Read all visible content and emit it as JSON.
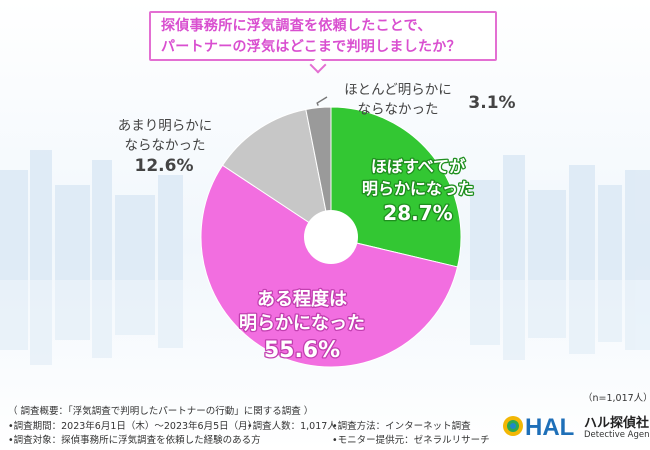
{
  "question": {
    "line1": "探偵事務所に浮気調査を依頼したことで、",
    "line2": "パートナーの浮気はどこまで判明しましたか？"
  },
  "chart_data": {
    "type": "pie",
    "title": "探偵事務所に浮気調査を依頼したことで、パートナーの浮気はどこまで判明しましたか？",
    "categories": [
      "ほぼすべてが明らかになった",
      "ある程度は明らかになった",
      "あまり明らかにならなかった",
      "ほとんど明らかにならなかった"
    ],
    "label_lines": [
      [
        "ほぼすべてが",
        "明らかになった"
      ],
      [
        "ある程度は",
        "明らかになった"
      ],
      [
        "あまり明らかに",
        "ならなかった"
      ],
      [
        "ほとんど明らかに",
        "ならなかった"
      ]
    ],
    "values": [
      28.7,
      55.6,
      12.6,
      3.1
    ],
    "value_labels": [
      "28.7%",
      "55.6%",
      "12.6%",
      "3.1%"
    ],
    "colors": [
      "#33c733",
      "#f26ee0",
      "#c7c7c7",
      "#9a9a9a"
    ],
    "sample_size": "（n=1,017人）"
  },
  "footer": {
    "overview": "（ 調査概要：「浮気調査で判明したパートナーの行動」に関する調査 ）",
    "period": "•調査期間：2023年6月1日（木）〜2023年6月5日（月）",
    "respondents": "•調査人数：1,017人",
    "method": "•調査方法：インターネット調査",
    "target": "•調査対象：探偵事務所に浮気調査を依頼した経験のある方",
    "provider": "•モニター提供元：ゼネラルリサーチ"
  },
  "brand": {
    "logo_text": "HAL",
    "name_jp": "ハル探偵社",
    "name_en": "Detective Agency"
  }
}
